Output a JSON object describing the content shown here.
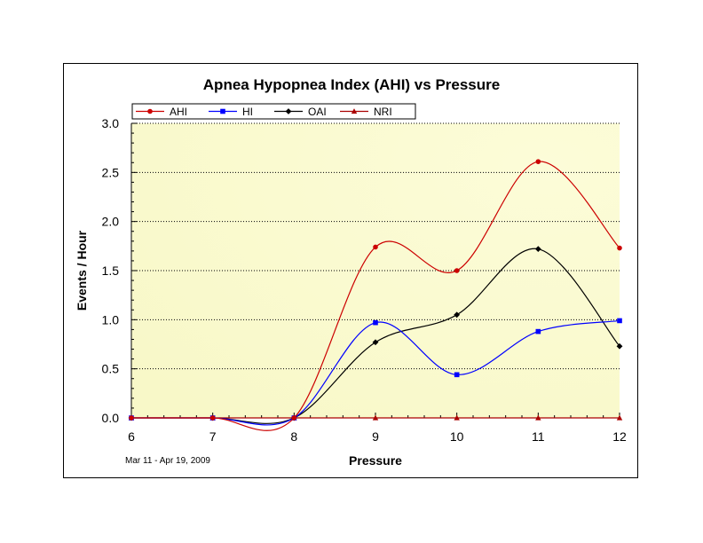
{
  "chart_data": {
    "type": "line",
    "title": "Apnea Hypopnea Index (AHI) vs Pressure",
    "xlabel": "Pressure",
    "ylabel": "Events / Hour",
    "footnote": "Mar 11 - Apr 19, 2009",
    "x": [
      6,
      7,
      8,
      9,
      10,
      11,
      12
    ],
    "xlim": [
      6,
      12
    ],
    "ylim": [
      0,
      3.0
    ],
    "x_ticks": [
      "6",
      "7",
      "8",
      "9",
      "10",
      "11",
      "12"
    ],
    "y_ticks": [
      "0.0",
      "0.5",
      "1.0",
      "1.5",
      "2.0",
      "2.5",
      "3.0"
    ],
    "grid": "horizontal dotted",
    "legend_position": "top-left",
    "series": [
      {
        "name": "AHI",
        "color": "#cc0000",
        "marker": "circle",
        "values": [
          0,
          0,
          0,
          1.74,
          1.5,
          2.61,
          1.73
        ]
      },
      {
        "name": "HI",
        "color": "#0000ff",
        "marker": "square",
        "values": [
          0,
          0,
          0,
          0.97,
          0.44,
          0.88,
          0.99
        ]
      },
      {
        "name": "OAI",
        "color": "#000000",
        "marker": "diamond",
        "values": [
          0,
          0,
          0,
          0.77,
          1.05,
          1.72,
          0.73
        ]
      },
      {
        "name": "NRI",
        "color": "#aa0000",
        "marker": "triangle",
        "values": [
          0,
          0,
          0,
          0,
          0,
          0,
          0
        ]
      }
    ]
  }
}
